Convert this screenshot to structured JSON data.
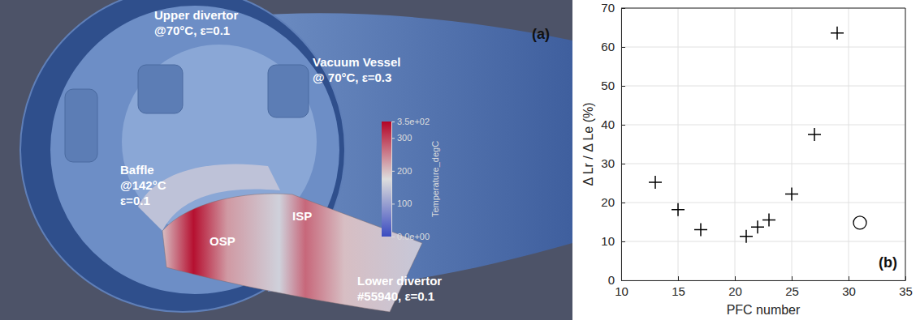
{
  "panel_a": {
    "panel_label": "(a)",
    "labels": [
      {
        "lines": [
          "Upper divertor",
          "@70°C, ε=0.1"
        ]
      },
      {
        "lines": [
          "Vacuum Vessel",
          "@ 70°C, ε=0.3"
        ]
      },
      {
        "lines": [
          "Baffle",
          "@142°C",
          "ε=0.1"
        ]
      },
      {
        "lines": [
          "ISP"
        ]
      },
      {
        "lines": [
          "OSP"
        ]
      },
      {
        "lines": [
          "Lower divertor",
          "#55940, ε=0.1"
        ]
      }
    ],
    "colorbar": {
      "title": "Temperature_degC",
      "range": [
        0,
        350
      ],
      "ticks": [
        {
          "value": 0,
          "label": "0.0e+00"
        },
        100,
        200,
        300,
        {
          "value": 350,
          "label": "3.5e+02"
        }
      ]
    }
  },
  "chart_data": {
    "type": "scatter",
    "panel_label": "(b)",
    "x_label": "PFC number",
    "y_label": "Δ Lr / Δ Le (%)",
    "xlim": [
      10,
      35
    ],
    "xticks": [
      10,
      15,
      20,
      25,
      30,
      35
    ],
    "ylim": [
      0,
      70
    ],
    "yticks": [
      0,
      10,
      20,
      30,
      40,
      50,
      60,
      70
    ],
    "grid": true,
    "series": [
      {
        "marker": "plus",
        "color": "#000000",
        "x": [
          13,
          15,
          17,
          21,
          22,
          23,
          25,
          27,
          29
        ],
        "values": [
          25.2,
          18.2,
          13.0,
          11.3,
          13.7,
          15.5,
          22.2,
          37.5,
          63.6
        ]
      },
      {
        "marker": "circle",
        "color": "#000000",
        "x": [
          31
        ],
        "values": [
          14.8
        ]
      }
    ]
  }
}
